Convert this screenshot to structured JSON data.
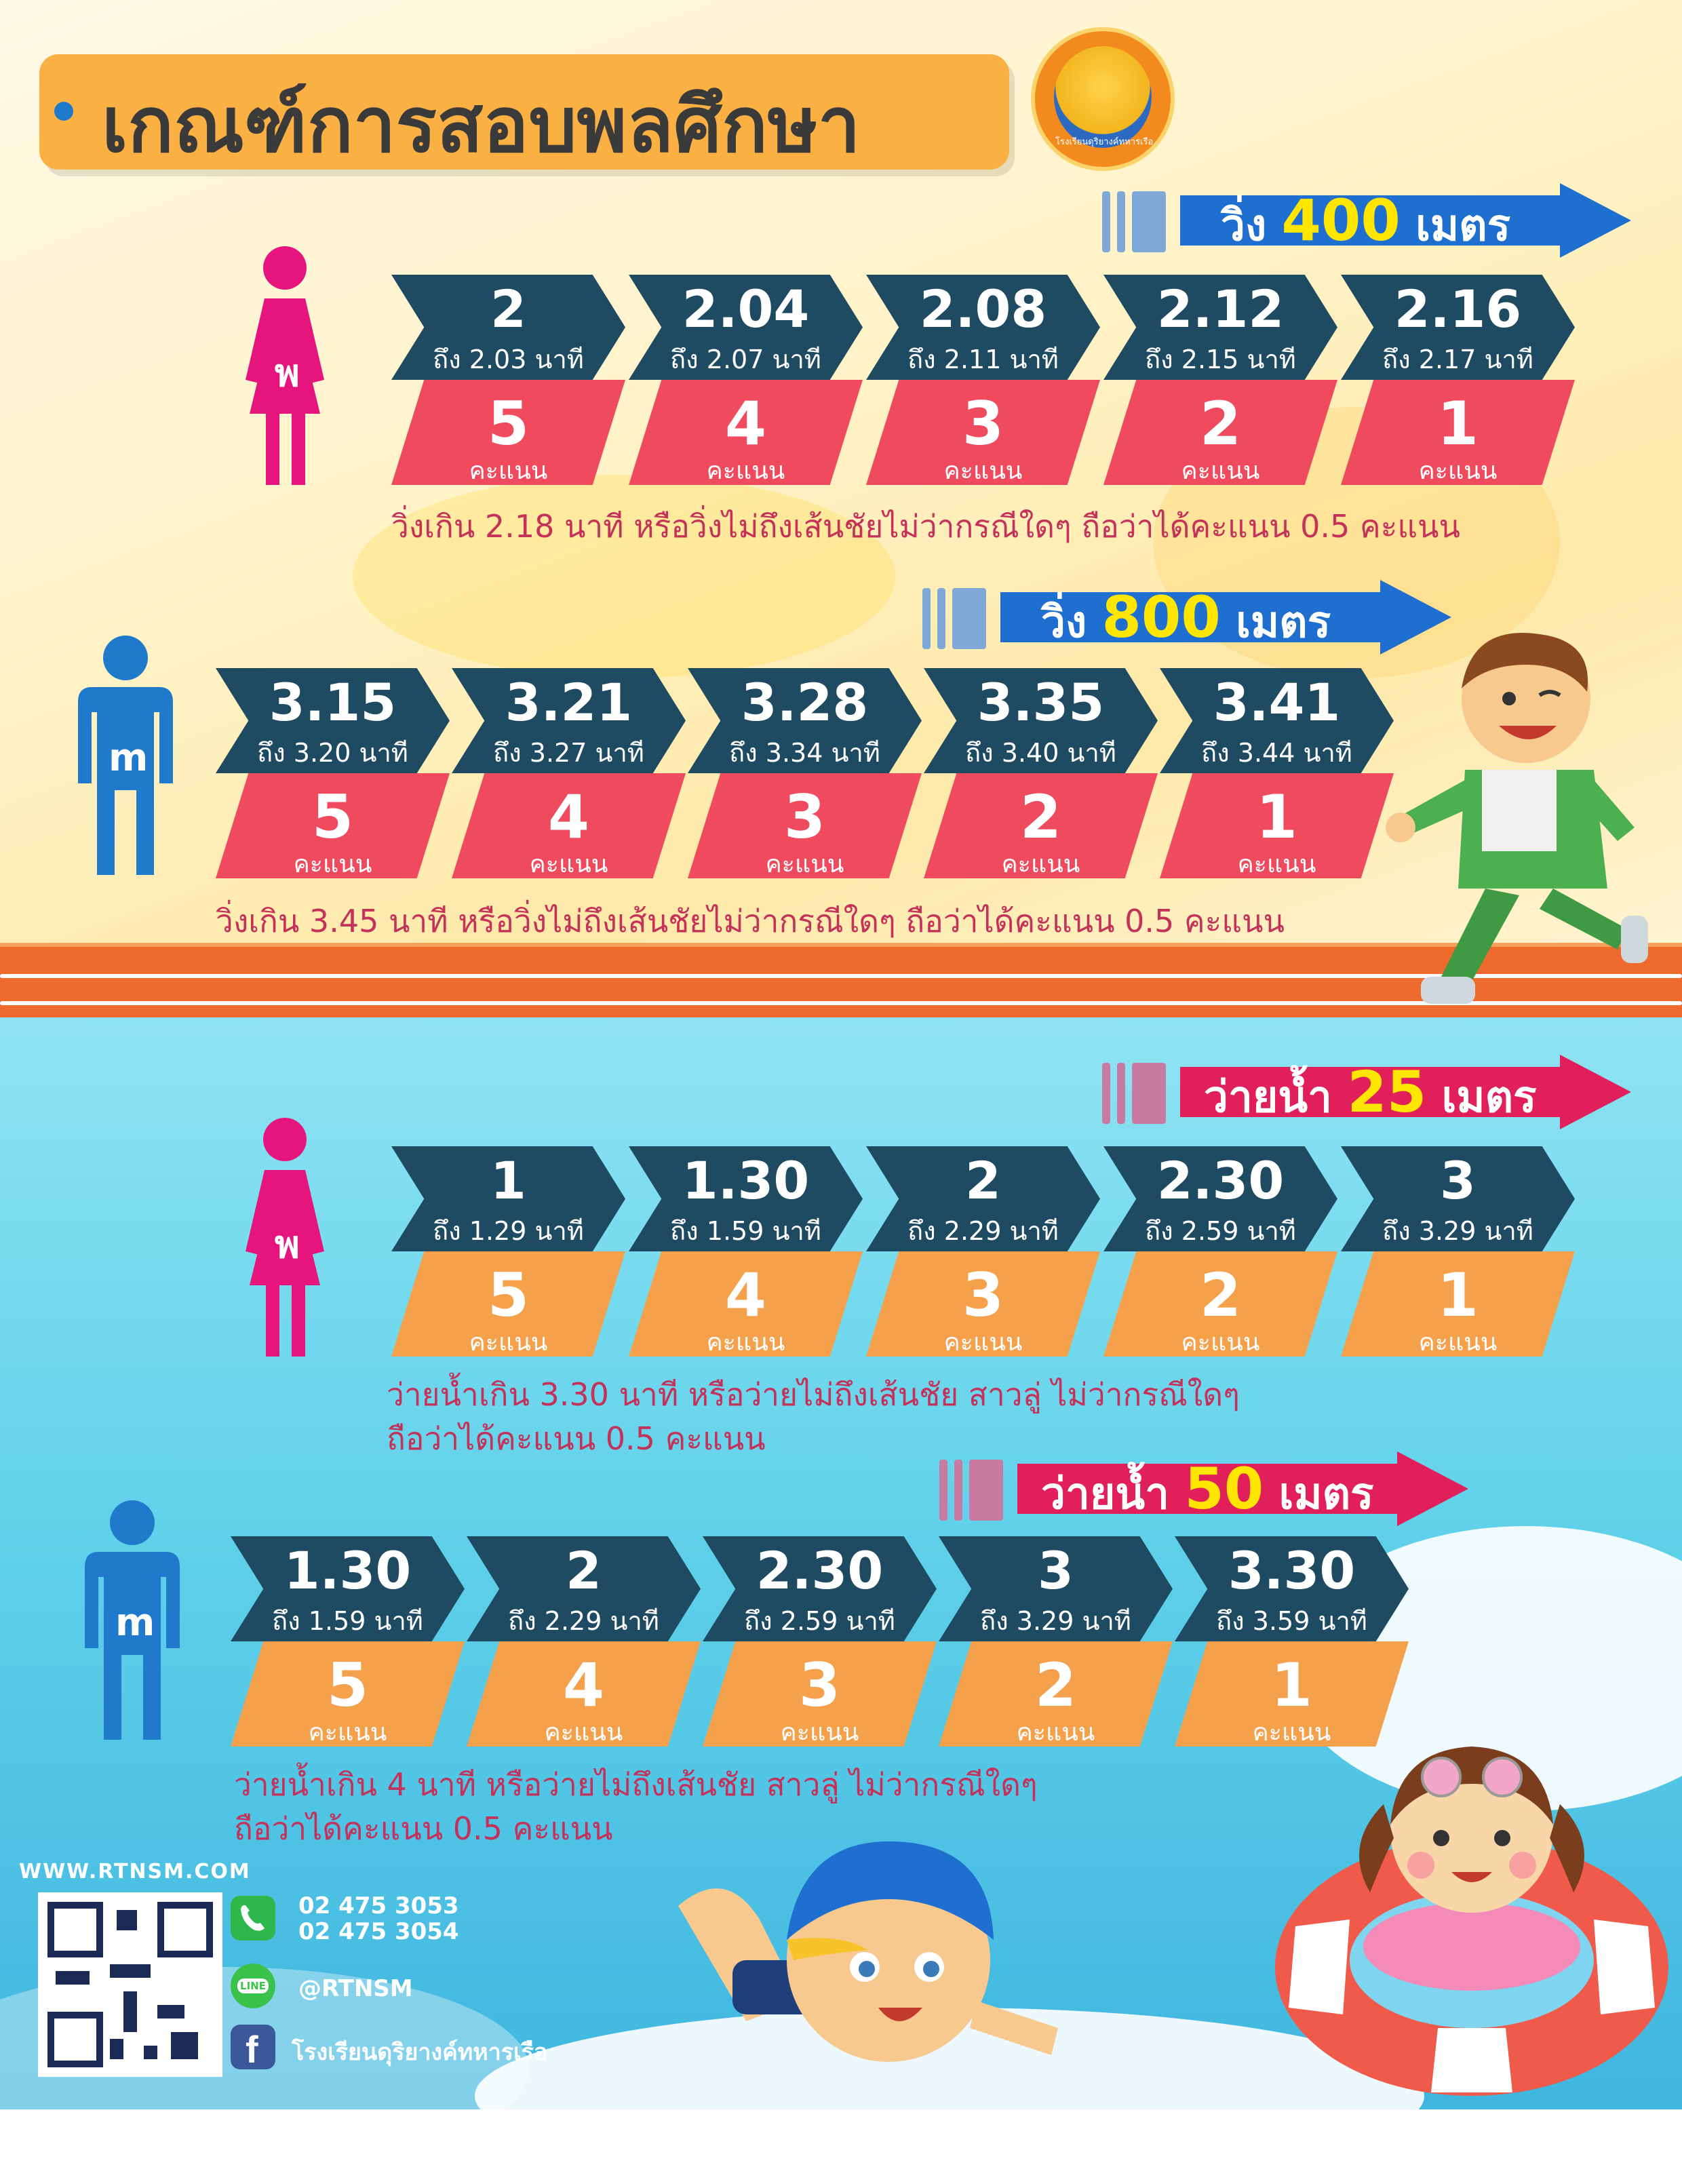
{
  "title": "เกณฑ์การสอบพลศึกษา",
  "logo_text": "โรงเรียนดุริยางค์ทหารเรือ",
  "colors": {
    "navy": "#1e4a62",
    "red": "#ef4a5e",
    "orange": "#f5a04a",
    "blue_banner": "#1f6fd0",
    "pink_banner": "#e01f5b",
    "female": "#e5157d",
    "male": "#1f7acb",
    "note": "#c4325a"
  },
  "sections": [
    {
      "banner": {
        "prefix": "วิ่ง",
        "number": "400",
        "suffix": "เมตร"
      },
      "gender_label": "พ",
      "unit": "คะแนน",
      "items": [
        {
          "main": "2",
          "sub": "ถึง 2.03 นาที",
          "score": "5"
        },
        {
          "main": "2.04",
          "sub": "ถึง 2.07 นาที",
          "score": "4"
        },
        {
          "main": "2.08",
          "sub": "ถึง 2.11 นาที",
          "score": "3"
        },
        {
          "main": "2.12",
          "sub": "ถึง 2.15 นาที",
          "score": "2"
        },
        {
          "main": "2.16",
          "sub": "ถึง 2.17 นาที",
          "score": "1"
        }
      ],
      "note": [
        "วิ่งเกิน 2.18 นาที หรือวิ่งไม่ถึงเส้นชัยไม่ว่ากรณีใดๆ ถือว่าได้คะแนน 0.5 คะแนน"
      ]
    },
    {
      "banner": {
        "prefix": "วิ่ง",
        "number": "800",
        "suffix": "เมตร"
      },
      "gender_label": " m",
      "unit": "คะแนน",
      "items": [
        {
          "main": "3.15",
          "sub": "ถึง 3.20 นาที",
          "score": "5"
        },
        {
          "main": "3.21",
          "sub": "ถึง 3.27 นาที",
          "score": "4"
        },
        {
          "main": "3.28",
          "sub": "ถึง 3.34 นาที",
          "score": "3"
        },
        {
          "main": "3.35",
          "sub": "ถึง 3.40 นาที",
          "score": "2"
        },
        {
          "main": "3.41",
          "sub": "ถึง 3.44 นาที",
          "score": "1"
        }
      ],
      "note": [
        "วิ่งเกิน 3.45 นาที หรือวิ่งไม่ถึงเส้นชัยไม่ว่ากรณีใดๆ ถือว่าได้คะแนน 0.5 คะแนน"
      ]
    },
    {
      "banner": {
        "prefix": "ว่ายน้ำ",
        "number": "25",
        "suffix": "เมตร"
      },
      "gender_label": " พ",
      "unit": "คะแนน",
      "items": [
        {
          "main": "1",
          "sub": "ถึง 1.29 นาที",
          "score": "5"
        },
        {
          "main": "1.30",
          "sub": "ถึง 1.59 นาที",
          "score": "4"
        },
        {
          "main": "2",
          "sub": "ถึง 2.29 นาที",
          "score": "3"
        },
        {
          "main": "2.30",
          "sub": "ถึง 2.59 นาที",
          "score": "2"
        },
        {
          "main": "3",
          "sub": "ถึง 3.29 นาที",
          "score": "1"
        }
      ],
      "note": [
        "ว่ายน้ำเกิน 3.30 นาที หรือว่ายไม่ถึงเส้นชัย สาวลู่ ไม่ว่ากรณีใดๆ",
        "ถือว่าได้คะแนน 0.5 คะแนน"
      ]
    },
    {
      "banner": {
        "prefix": "ว่ายน้ำ",
        "number": "50",
        "suffix": "เมตร"
      },
      "gender_label": "m",
      "unit": "คะแนน",
      "items": [
        {
          "main": "1.30",
          "sub": "ถึง 1.59 นาที",
          "score": "5"
        },
        {
          "main": "2",
          "sub": "ถึง 2.29 นาที",
          "score": "4"
        },
        {
          "main": "2.30",
          "sub": "ถึง 2.59 นาที",
          "score": "3"
        },
        {
          "main": "3",
          "sub": "ถึง 3.29 นาที",
          "score": "2"
        },
        {
          "main": "3.30",
          "sub": "ถึง 3.59 นาที",
          "score": "1"
        }
      ],
      "note": [
        "ว่ายน้ำเกิน 4 นาที หรือว่ายไม่ถึงเส้นชัย สาวลู่ ไม่ว่ากรณีใดๆ",
        "ถือว่าได้คะแนน 0.5 คะแนน"
      ]
    }
  ],
  "footer": {
    "website": "WWW.RTNSM.COM",
    "phone1": "02 475 3053",
    "phone2": "02 475 3054",
    "line": "@RTNSM",
    "facebook": "โรงเรียนดุริยางค์ทหารเรือ",
    "icons": [
      "phone-icon",
      "line-icon",
      "facebook-icon"
    ]
  }
}
